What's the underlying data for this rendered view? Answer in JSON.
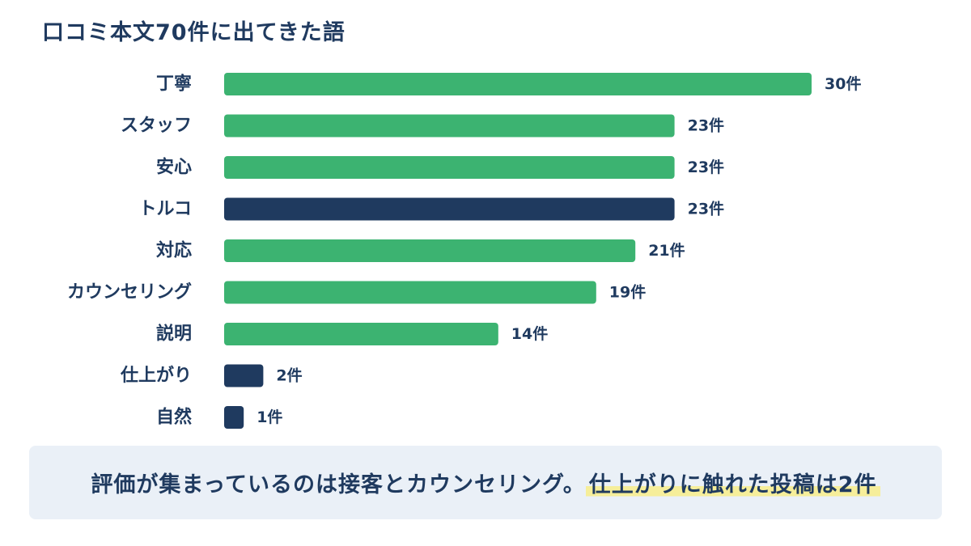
{
  "title": "口コミ本文70件に出てきた語",
  "chart_data": {
    "type": "bar",
    "orientation": "horizontal",
    "title": "口コミ本文70件に出てきた語",
    "categories": [
      "丁寧",
      "スタッフ",
      "安心",
      "トルコ",
      "対応",
      "カウンセリング",
      "説明",
      "仕上がり",
      "自然"
    ],
    "values": [
      30,
      23,
      23,
      23,
      21,
      19,
      14,
      2,
      1
    ],
    "value_labels": [
      "30件",
      "23件",
      "23件",
      "23件",
      "21件",
      "19件",
      "14件",
      "2件",
      "1件"
    ],
    "bar_colors": [
      "#3cb371",
      "#3cb371",
      "#3cb371",
      "#1f3a5f",
      "#3cb371",
      "#3cb371",
      "#3cb371",
      "#1f3a5f",
      "#1f3a5f"
    ],
    "xlim": [
      0,
      30
    ],
    "grid": false,
    "legend": "none"
  },
  "colors": {
    "green": "#3cb371",
    "navy": "#1f3a5f",
    "highlight": "#f6ee9a",
    "caption_bg": "#eaf0f7"
  },
  "caption": {
    "main": "評価が集まっているのは接客とカウンセリング。",
    "highlight": "仕上がりに触れた投稿は2件"
  }
}
